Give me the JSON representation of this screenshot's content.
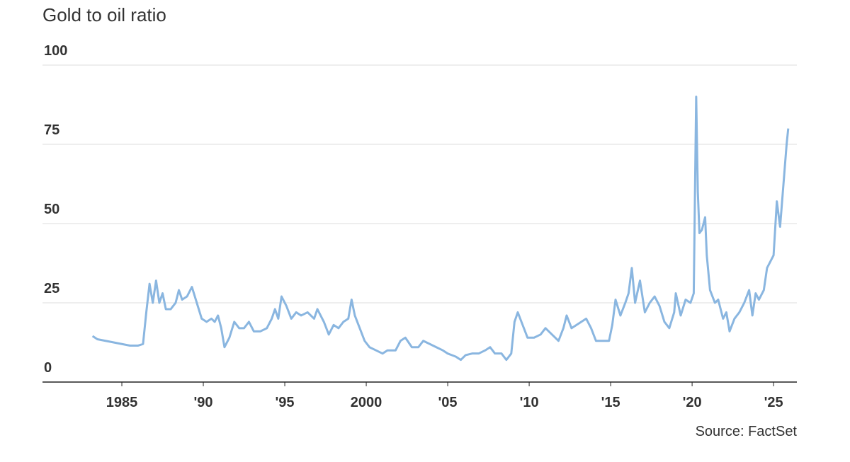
{
  "chart_data": {
    "type": "line",
    "subtitle": "Gold to oil ratio",
    "source": "Source: FactSet",
    "color": "#8ab6e0",
    "grid": true,
    "xlim": [
      1980.13,
      2026.43
    ],
    "ylim": [
      0,
      100
    ],
    "yticks": [
      0,
      25,
      50,
      75,
      100
    ],
    "xticks": [
      1985,
      {
        "value": 1990,
        "label": "'90"
      },
      {
        "value": 1995,
        "label": "'95"
      },
      2000,
      {
        "value": 2005,
        "label": "'05"
      },
      {
        "value": 2010,
        "label": "'10"
      },
      {
        "value": 2015,
        "label": "'15"
      },
      {
        "value": 2020,
        "label": "'20"
      },
      {
        "value": 2025,
        "label": "'25"
      }
    ],
    "x": [
      1983.2,
      1983.5,
      1984.0,
      1984.5,
      1985.0,
      1985.5,
      1986.0,
      1986.3,
      1986.5,
      1986.7,
      1986.9,
      1987.1,
      1987.3,
      1987.5,
      1987.7,
      1988.0,
      1988.3,
      1988.5,
      1988.7,
      1989.0,
      1989.3,
      1989.6,
      1989.9,
      1990.2,
      1990.5,
      1990.7,
      1990.9,
      1991.1,
      1991.3,
      1991.6,
      1991.9,
      1992.2,
      1992.5,
      1992.8,
      1993.1,
      1993.5,
      1993.9,
      1994.2,
      1994.4,
      1994.6,
      1994.8,
      1995.1,
      1995.4,
      1995.7,
      1996.0,
      1996.4,
      1996.8,
      1997.0,
      1997.4,
      1997.7,
      1998.0,
      1998.3,
      1998.6,
      1998.9,
      1999.1,
      1999.3,
      1999.6,
      1999.9,
      2000.2,
      2000.6,
      2001.0,
      2001.3,
      2001.8,
      2002.1,
      2002.4,
      2002.8,
      2003.2,
      2003.5,
      2003.9,
      2004.3,
      2004.7,
      2005.0,
      2005.5,
      2005.8,
      2006.1,
      2006.5,
      2006.9,
      2007.3,
      2007.6,
      2007.9,
      2008.3,
      2008.6,
      2008.9,
      2009.1,
      2009.3,
      2009.6,
      2009.9,
      2010.3,
      2010.7,
      2011.0,
      2011.4,
      2011.8,
      2012.1,
      2012.3,
      2012.6,
      2012.9,
      2013.2,
      2013.5,
      2013.8,
      2014.1,
      2014.5,
      2014.9,
      2015.1,
      2015.3,
      2015.6,
      2015.9,
      2016.1,
      2016.3,
      2016.5,
      2016.8,
      2017.1,
      2017.4,
      2017.7,
      2018.0,
      2018.3,
      2018.6,
      2018.9,
      2019.0,
      2019.3,
      2019.6,
      2019.9,
      2020.1,
      2020.25,
      2020.35,
      2020.45,
      2020.6,
      2020.8,
      2020.9,
      2021.1,
      2021.4,
      2021.6,
      2021.9,
      2022.1,
      2022.3,
      2022.6,
      2022.9,
      2023.2,
      2023.5,
      2023.7,
      2023.9,
      2024.1,
      2024.4,
      2024.6,
      2024.8,
      2025.0,
      2025.2,
      2025.4,
      2025.6,
      2025.8,
      2025.9
    ],
    "values": [
      14.5,
      13.5,
      13,
      12.5,
      12,
      11.5,
      11.5,
      12,
      22,
      31,
      25,
      32,
      25,
      28,
      23,
      23,
      25,
      29,
      26,
      27,
      30,
      25,
      20,
      19,
      20,
      19,
      21,
      17,
      11,
      14,
      19,
      17,
      17,
      19,
      16,
      16,
      17,
      20,
      23,
      20,
      27,
      24,
      20,
      22,
      21,
      22,
      20,
      23,
      19,
      15,
      18,
      17,
      19,
      20,
      26,
      21,
      17,
      13,
      11,
      10,
      9,
      10,
      10,
      13,
      14,
      11,
      11,
      13,
      12,
      11,
      10,
      9,
      8,
      7,
      8.5,
      9,
      9,
      10,
      11,
      9,
      9,
      7,
      9,
      19,
      22,
      18,
      14,
      14,
      15,
      17,
      15,
      13,
      17,
      21,
      17,
      18,
      19,
      20,
      17,
      13,
      13,
      13,
      18,
      26,
      21,
      25,
      28,
      36,
      25,
      32,
      22,
      25,
      27,
      24,
      19,
      17,
      22,
      28,
      21,
      26,
      25,
      28,
      90,
      60,
      47,
      48,
      52,
      40,
      29,
      25,
      26,
      20,
      22,
      16,
      20,
      22,
      25,
      29,
      21,
      28,
      26,
      29,
      36,
      38,
      40,
      57,
      49,
      62,
      75,
      80
    ]
  }
}
